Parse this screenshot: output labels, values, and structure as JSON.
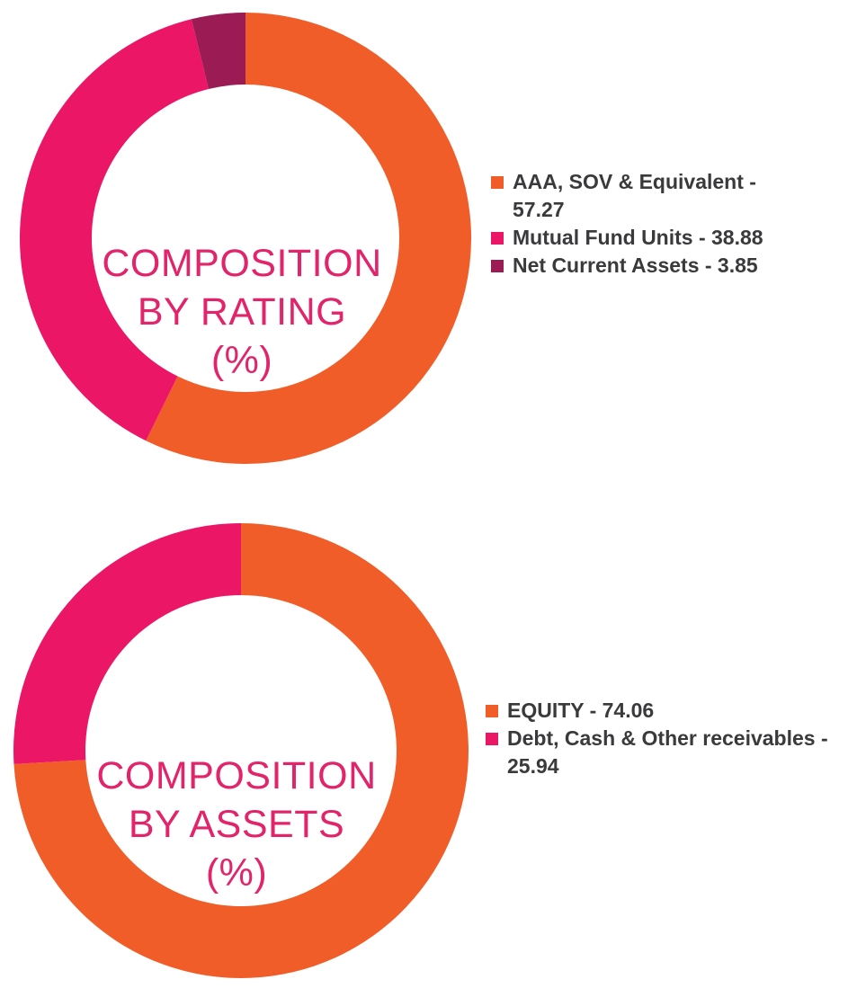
{
  "chart_data": [
    {
      "type": "pie",
      "variant": "donut",
      "title_lines": [
        "COMPOSITION",
        "BY RATING",
        "(%)"
      ],
      "categories": [
        "AAA, SOV & Equivalent",
        "Mutual Fund Units",
        "Net Current Assets"
      ],
      "values": [
        57.27,
        38.88,
        3.85
      ],
      "colors": [
        "#f15d28",
        "#ec1666",
        "#9b1b55"
      ],
      "legend": [
        {
          "text": "AAA, SOV & Equivalent - 57.27",
          "color": "#f15d28"
        },
        {
          "text": "Mutual Fund Units - 38.88",
          "color": "#ec1666"
        },
        {
          "text": "Net Current Assets - 3.85",
          "color": "#9b1b55"
        }
      ],
      "legend_position": "right"
    },
    {
      "type": "pie",
      "variant": "donut",
      "title_lines": [
        "COMPOSITION",
        "BY ASSETS",
        "(%)"
      ],
      "categories": [
        "EQUITY",
        "Debt, Cash & Other receivables"
      ],
      "values": [
        74.06,
        25.94
      ],
      "colors": [
        "#f15d28",
        "#ec1666"
      ],
      "legend": [
        {
          "text": "EQUITY - 74.06",
          "color": "#f15d28"
        },
        {
          "text": "Debt, Cash & Other receivables - 25.94",
          "color": "#ec1666"
        }
      ],
      "legend_position": "right"
    }
  ]
}
